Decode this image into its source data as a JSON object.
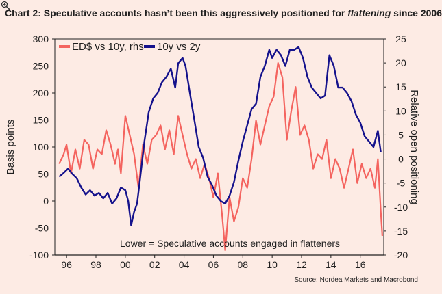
{
  "title": {
    "before": "Chart 2: Speculative accounts hasn’t been this aggressively positioned for ",
    "emph": "flattening",
    "after": " since 2006"
  },
  "source": "Source: Nordea Markets and Macrobond",
  "icons": {
    "zoom": "magnifier-plus-icon"
  },
  "colors": {
    "ed": "#f4645f",
    "spread": "#15128c",
    "background": "#fdebe4",
    "axis": "#1f1f1f"
  },
  "chart_data": {
    "type": "line",
    "title": "Chart 2: Speculative accounts hasn’t been this aggressively positioned for flattening since 2006",
    "ylabel": "Basis points",
    "y2label": "Relative open positioning",
    "ylim": [
      -100,
      300
    ],
    "y2lim": [
      -20,
      25
    ],
    "yticks": [
      -100,
      -50,
      0,
      50,
      100,
      150,
      200,
      250,
      300
    ],
    "y2ticks": [
      -20,
      -15,
      -10,
      -5,
      0,
      5,
      10,
      15,
      20,
      25
    ],
    "xlim": [
      1995.2,
      2017.6
    ],
    "xticks": [
      {
        "v": 1996,
        "label": "96"
      },
      {
        "v": 1998,
        "label": "98"
      },
      {
        "v": 2000,
        "label": "00"
      },
      {
        "v": 2002,
        "label": "02"
      },
      {
        "v": 2004,
        "label": "04"
      },
      {
        "v": 2006,
        "label": "06"
      },
      {
        "v": 2008,
        "label": "08"
      },
      {
        "v": 2010,
        "label": "10"
      },
      {
        "v": 2012,
        "label": "12"
      },
      {
        "v": 2014,
        "label": "14"
      },
      {
        "v": 2016,
        "label": "16"
      }
    ],
    "grid": false,
    "legend_position": "top-left",
    "annotation": "Lower = Speculative accounts engaged in flatteners",
    "series": [
      {
        "name": "ED$ vs 10y, rhs",
        "axis": "right",
        "color": "#f4645f",
        "x": [
          1995.5,
          1995.8,
          1996.0,
          1996.3,
          1996.6,
          1996.9,
          1997.2,
          1997.5,
          1997.8,
          1998.1,
          1998.4,
          1998.7,
          1999.0,
          1999.3,
          1999.5,
          1999.7,
          2000.0,
          2000.3,
          2000.6,
          2000.9,
          2001.2,
          2001.5,
          2001.8,
          2002.1,
          2002.4,
          2002.7,
          2003.0,
          2003.3,
          2003.6,
          2003.9,
          2004.2,
          2004.5,
          2004.8,
          2005.1,
          2005.4,
          2005.7,
          2006.0,
          2006.3,
          2006.6,
          2006.8,
          2007.1,
          2007.4,
          2007.7,
          2008.0,
          2008.3,
          2008.6,
          2008.9,
          2009.2,
          2009.5,
          2009.8,
          2010.1,
          2010.4,
          2010.7,
          2011.0,
          2011.3,
          2011.6,
          2011.9,
          2012.2,
          2012.5,
          2012.8,
          2013.1,
          2013.4,
          2013.7,
          2014.0,
          2014.3,
          2014.6,
          2014.9,
          2015.2,
          2015.5,
          2015.8,
          2016.1,
          2016.4,
          2016.7,
          2017.0,
          2017.2,
          2017.4,
          2017.5
        ],
        "values": [
          -1,
          1,
          3,
          -3,
          2,
          -2,
          4,
          3,
          -2,
          2,
          1,
          6,
          3,
          -1,
          2,
          -3,
          9,
          5,
          1,
          -6,
          3,
          -1,
          4,
          5,
          7,
          2,
          6,
          1,
          9,
          5,
          1,
          -2,
          0,
          -4,
          -1,
          -4,
          -8,
          -3,
          -12,
          -19,
          -8,
          -13,
          -10,
          -4,
          -6,
          0,
          8,
          3,
          7,
          11,
          13,
          20,
          17,
          4,
          10,
          15,
          5,
          7,
          4,
          -2,
          1,
          0,
          4,
          -4,
          0,
          -2,
          -6,
          -2,
          2,
          -5,
          -1,
          -4,
          -2,
          -6,
          0,
          -11,
          -16
        ]
      },
      {
        "name": "10y vs 2y",
        "axis": "left",
        "color": "#15128c",
        "x": [
          1995.5,
          1995.8,
          1996.1,
          1996.4,
          1996.7,
          1997.0,
          1997.3,
          1997.6,
          1997.9,
          1998.2,
          1998.5,
          1998.8,
          1999.1,
          1999.4,
          1999.7,
          2000.0,
          2000.2,
          2000.4,
          2000.6,
          2000.8,
          2001.0,
          2001.3,
          2001.6,
          2001.9,
          2002.2,
          2002.5,
          2002.8,
          2003.1,
          2003.4,
          2003.6,
          2003.9,
          2004.1,
          2004.4,
          2004.7,
          2005.0,
          2005.3,
          2005.6,
          2005.9,
          2006.2,
          2006.5,
          2006.8,
          2007.1,
          2007.4,
          2007.7,
          2008.0,
          2008.3,
          2008.6,
          2008.9,
          2009.2,
          2009.5,
          2009.8,
          2010.0,
          2010.3,
          2010.6,
          2010.9,
          2011.2,
          2011.5,
          2011.8,
          2012.1,
          2012.4,
          2012.7,
          2013.0,
          2013.3,
          2013.6,
          2013.9,
          2014.2,
          2014.5,
          2014.8,
          2015.1,
          2015.4,
          2015.7,
          2016.0,
          2016.3,
          2016.6,
          2016.9,
          2017.2,
          2017.4
        ],
        "values": [
          45,
          52,
          60,
          50,
          42,
          25,
          12,
          20,
          10,
          15,
          5,
          15,
          -5,
          5,
          25,
          20,
          0,
          -45,
          -20,
          -5,
          40,
          110,
          165,
          190,
          200,
          220,
          230,
          245,
          210,
          255,
          265,
          250,
          200,
          150,
          100,
          80,
          45,
          30,
          10,
          0,
          -5,
          10,
          35,
          75,
          110,
          140,
          170,
          180,
          230,
          250,
          280,
          265,
          280,
          270,
          250,
          280,
          280,
          285,
          265,
          230,
          210,
          200,
          190,
          195,
          270,
          250,
          210,
          210,
          200,
          185,
          160,
          145,
          120,
          110,
          100,
          130,
          90
        ]
      }
    ]
  }
}
